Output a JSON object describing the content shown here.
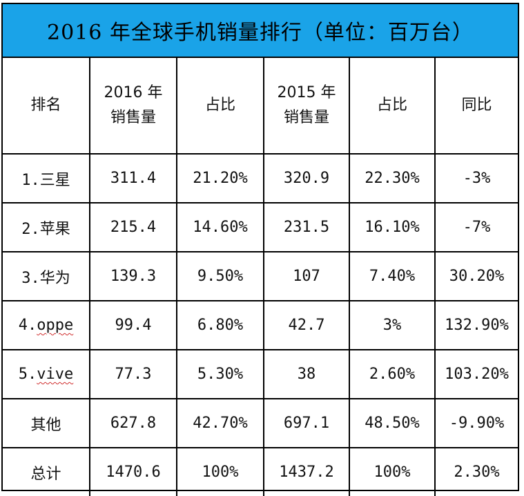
{
  "title": "2016 年全球手机销量排行（单位：百万台）",
  "headers": {
    "rank": "排名",
    "sales2016_line1": "2016 年",
    "sales2016_line2": "销售量",
    "share2016": "占比",
    "sales2015_line1": "2015 年",
    "sales2015_line2": "销售量",
    "share2015": "占比",
    "yoy": "同比"
  },
  "rows": [
    {
      "prefix": "1.",
      "name": "三星",
      "sales2016": "311.4",
      "share2016": "21.20%",
      "sales2015": "320.9",
      "share2015": "22.30%",
      "yoy": "-3%"
    },
    {
      "prefix": "2.",
      "name": "苹果",
      "sales2016": "215.4",
      "share2016": "14.60%",
      "sales2015": "231.5",
      "share2015": "16.10%",
      "yoy": "-7%"
    },
    {
      "prefix": "3.",
      "name": "华为",
      "sales2016": "139.3",
      "share2016": "9.50%",
      "sales2015": "107",
      "share2015": "7.40%",
      "yoy": "30.20%"
    },
    {
      "prefix": "4.",
      "name": "oppe",
      "sales2016": "99.4",
      "share2016": "6.80%",
      "sales2015": "42.7",
      "share2015": "3%",
      "yoy": "132.90%"
    },
    {
      "prefix": "5.",
      "name": "vive",
      "sales2016": "77.3",
      "share2016": "5.30%",
      "sales2015": "38",
      "share2015": "2.60%",
      "yoy": "103.20%"
    },
    {
      "prefix": "",
      "name": "其他",
      "sales2016": "627.8",
      "share2016": "42.70%",
      "sales2015": "697.1",
      "share2015": "48.50%",
      "yoy": "-9.90%"
    },
    {
      "prefix": "",
      "name": "总计",
      "sales2016": "1470.6",
      "share2016": "100%",
      "sales2015": "1437.2",
      "share2015": "100%",
      "yoy": "2.30%"
    }
  ],
  "colors": {
    "title_bg": "#1aa3e8",
    "border": "#000000",
    "spellcheck_underline": "#d03030"
  }
}
